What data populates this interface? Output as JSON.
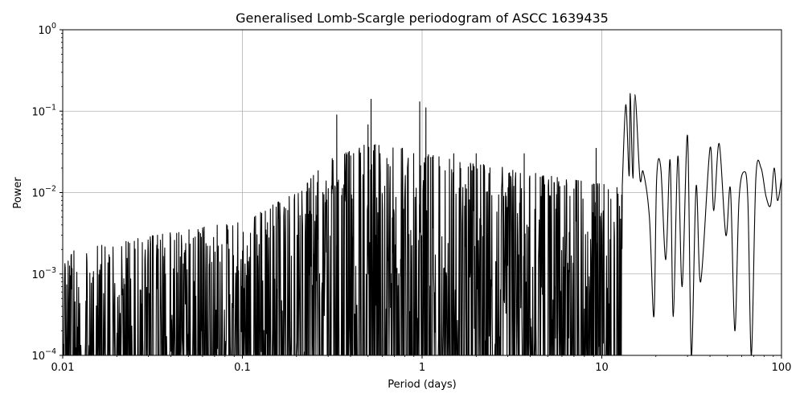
{
  "chart_data": {
    "type": "line",
    "title": "Generalised Lomb-Scargle periodogram of ASCC 1639435",
    "xlabel": "Period (days)",
    "ylabel": "Power",
    "xscale": "log",
    "yscale": "log",
    "xlim": [
      0.01,
      100
    ],
    "ylim": [
      0.0001,
      1
    ],
    "grid": true,
    "line_color": "#000000",
    "x_ticks": [
      {
        "value": 0.01,
        "label": "0.01"
      },
      {
        "value": 0.1,
        "label": "0.1"
      },
      {
        "value": 1,
        "label": "1"
      },
      {
        "value": 10,
        "label": "10"
      },
      {
        "value": 100,
        "label": "100"
      }
    ],
    "y_ticks": [
      {
        "value": 0.0001,
        "base": "10",
        "exp": "−4"
      },
      {
        "value": 0.001,
        "base": "10",
        "exp": "−3"
      },
      {
        "value": 0.01,
        "base": "10",
        "exp": "−2"
      },
      {
        "value": 0.1,
        "base": "10",
        "exp": "−1"
      },
      {
        "value": 1,
        "base": "10",
        "exp": "0"
      }
    ],
    "envelope": [
      {
        "period": 0.01,
        "power": 0.0018
      },
      {
        "period": 0.02,
        "power": 0.0025
      },
      {
        "period": 0.05,
        "power": 0.0035
      },
      {
        "period": 0.1,
        "power": 0.0045
      },
      {
        "period": 0.2,
        "power": 0.01
      },
      {
        "period": 0.3,
        "power": 0.025
      },
      {
        "period": 0.5,
        "power": 0.04
      },
      {
        "period": 0.8,
        "power": 0.035
      },
      {
        "period": 1.5,
        "power": 0.025
      },
      {
        "period": 3,
        "power": 0.02
      },
      {
        "period": 6,
        "power": 0.015
      },
      {
        "period": 12,
        "power": 0.012
      }
    ],
    "peaks": [
      {
        "period": 0.335,
        "power": 0.09
      },
      {
        "period": 0.5,
        "power": 0.068
      },
      {
        "period": 0.52,
        "power": 0.14
      },
      {
        "period": 0.97,
        "power": 0.13
      },
      {
        "period": 1.05,
        "power": 0.11
      },
      {
        "period": 1.5,
        "power": 0.03
      },
      {
        "period": 2.0,
        "power": 0.03
      },
      {
        "period": 3.7,
        "power": 0.03
      },
      {
        "period": 9.3,
        "power": 0.035
      },
      {
        "period": 13.8,
        "power": 0.135
      },
      {
        "period": 14.3,
        "power": 0.165
      },
      {
        "period": 15.0,
        "power": 0.16
      }
    ],
    "long_period_curve": [
      {
        "period": 13.0,
        "power": 0.012
      },
      {
        "period": 13.6,
        "power": 0.12
      },
      {
        "period": 14.2,
        "power": 0.016
      },
      {
        "period": 14.4,
        "power": 0.165
      },
      {
        "period": 14.9,
        "power": 0.015
      },
      {
        "period": 15.3,
        "power": 0.16
      },
      {
        "period": 16.3,
        "power": 0.015
      },
      {
        "period": 17.0,
        "power": 0.018
      },
      {
        "period": 18.4,
        "power": 0.005
      },
      {
        "period": 19.5,
        "power": 0.0003
      },
      {
        "period": 20.2,
        "power": 0.015
      },
      {
        "period": 21.3,
        "power": 0.02
      },
      {
        "period": 22.7,
        "power": 0.0015
      },
      {
        "period": 24.0,
        "power": 0.025
      },
      {
        "period": 25.0,
        "power": 0.0003
      },
      {
        "period": 26.5,
        "power": 0.028
      },
      {
        "period": 28.0,
        "power": 0.0007
      },
      {
        "period": 30.0,
        "power": 0.05
      },
      {
        "period": 31.5,
        "power": 0.0001
      },
      {
        "period": 33.5,
        "power": 0.012
      },
      {
        "period": 35.5,
        "power": 0.0008
      },
      {
        "period": 40.0,
        "power": 0.035
      },
      {
        "period": 42.0,
        "power": 0.006
      },
      {
        "period": 45.0,
        "power": 0.04
      },
      {
        "period": 49.0,
        "power": 0.003
      },
      {
        "period": 52.0,
        "power": 0.011
      },
      {
        "period": 55.0,
        "power": 0.0002
      },
      {
        "period": 58.0,
        "power": 0.008
      },
      {
        "period": 62.0,
        "power": 0.018
      },
      {
        "period": 65.0,
        "power": 0.008
      },
      {
        "period": 68.0,
        "power": 0.0001
      },
      {
        "period": 72.0,
        "power": 0.015
      },
      {
        "period": 77.0,
        "power": 0.02
      },
      {
        "period": 82.0,
        "power": 0.009
      },
      {
        "period": 87.0,
        "power": 0.007
      },
      {
        "period": 91.0,
        "power": 0.02
      },
      {
        "period": 95.0,
        "power": 0.008
      },
      {
        "period": 100.0,
        "power": 0.015
      }
    ]
  }
}
